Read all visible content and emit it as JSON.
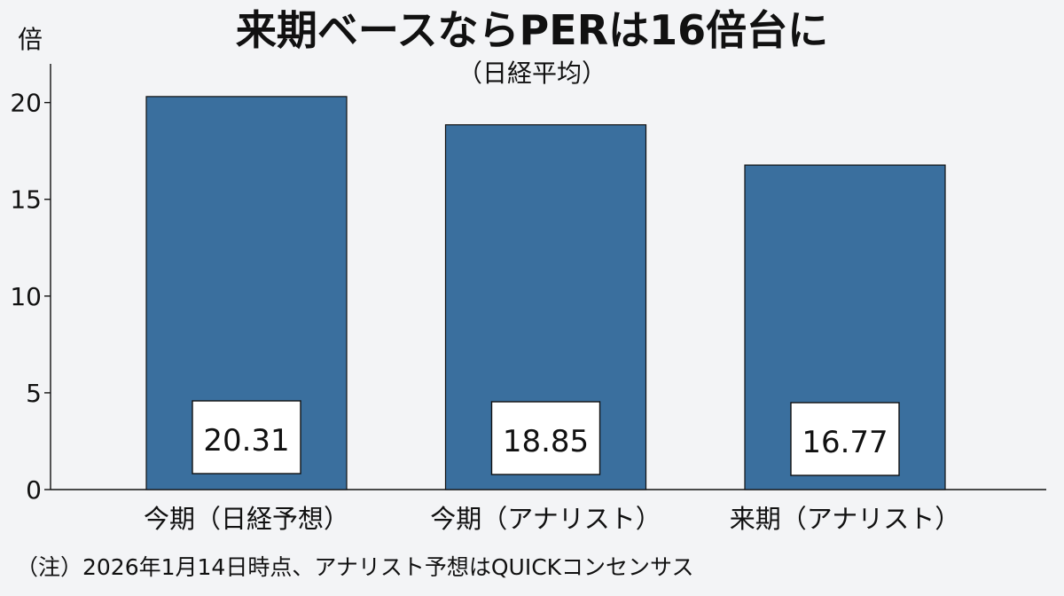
{
  "title": "来期ベースならPERは16倍台に",
  "subtitle": "（日経平均）",
  "note": "（注）2026年1月14日時点、アナリスト予想はQUICKコンセンサス",
  "chart_data": {
    "type": "bar",
    "title": "来期ベースならPERは16倍台に",
    "subtitle": "（日経平均）",
    "ylabel": "倍",
    "xlabel": "",
    "ylim": [
      0,
      22
    ],
    "yticks": [
      "0",
      "5",
      "10",
      "15",
      "20"
    ],
    "categories": [
      "今期（日経予想）",
      "今期（アナリスト）",
      "来期（アナリスト）"
    ],
    "values": [
      20.31,
      18.85,
      16.77
    ],
    "value_labels": [
      "20.31",
      "18.85",
      "16.77"
    ],
    "grid": false,
    "legend": "none",
    "bar_color": "#3a6f9e",
    "label_box_color": "#ffffff"
  }
}
